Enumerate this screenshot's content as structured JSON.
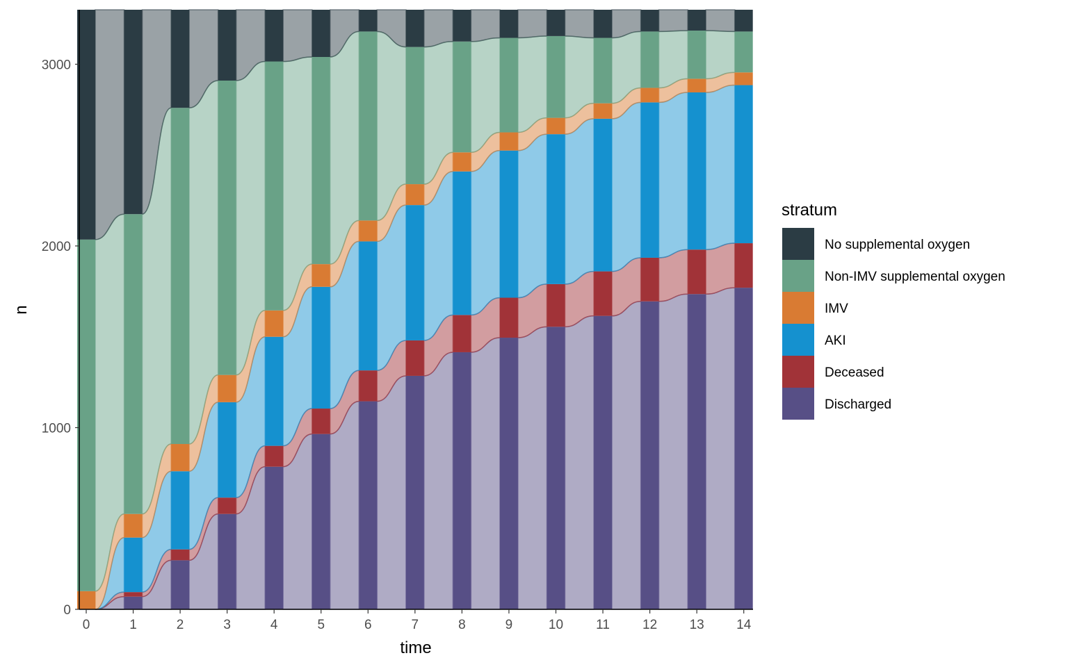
{
  "chart_data": {
    "type": "alluvial",
    "xlabel": "time",
    "ylabel": "n",
    "x_ticks": [
      "0",
      "1",
      "2",
      "3",
      "4",
      "5",
      "6",
      "7",
      "8",
      "9",
      "10",
      "11",
      "12",
      "13",
      "14"
    ],
    "y_ticks": [
      "0",
      "1000",
      "2000",
      "3000"
    ],
    "ylim": [
      0,
      3300
    ],
    "grid": false,
    "legend": {
      "title": "stratum",
      "position": "right"
    },
    "strata": [
      {
        "name": "No supplemental oxygen",
        "color": "#2b3c44"
      },
      {
        "name": "Non-IMV supplemental oxygen",
        "color": "#69a287"
      },
      {
        "name": "IMV",
        "color": "#d97b33"
      },
      {
        "name": "AKI",
        "color": "#1591cf"
      },
      {
        "name": "Deceased",
        "color": "#a13338"
      },
      {
        "name": "Discharged",
        "color": "#574f86"
      }
    ],
    "stack_order_bottom_to_top": [
      "Discharged",
      "Deceased",
      "AKI",
      "IMV",
      "Non-IMV supplemental oxygen",
      "No supplemental oxygen"
    ],
    "time": [
      0,
      1,
      2,
      3,
      4,
      5,
      6,
      7,
      8,
      9,
      10,
      11,
      12,
      13,
      14
    ],
    "counts": {
      "Discharged": [
        0,
        70,
        270,
        525,
        785,
        965,
        1145,
        1285,
        1415,
        1495,
        1555,
        1615,
        1695,
        1735,
        1770
      ],
      "Deceased": [
        0,
        25,
        60,
        90,
        115,
        140,
        170,
        195,
        205,
        220,
        235,
        245,
        240,
        245,
        245
      ],
      "AKI": [
        0,
        300,
        430,
        525,
        600,
        670,
        710,
        745,
        790,
        810,
        825,
        840,
        855,
        865,
        870
      ],
      "IMV": [
        100,
        130,
        150,
        150,
        145,
        125,
        115,
        115,
        105,
        100,
        90,
        85,
        80,
        75,
        70
      ],
      "Non-IMV supplemental oxygen": [
        1935,
        1650,
        1850,
        1620,
        1370,
        1140,
        1040,
        755,
        610,
        520,
        450,
        360,
        310,
        265,
        225
      ],
      "No supplemental oxygen": [
        1265,
        1125,
        540,
        390,
        285,
        260,
        120,
        205,
        175,
        155,
        145,
        155,
        120,
        115,
        120
      ]
    }
  }
}
